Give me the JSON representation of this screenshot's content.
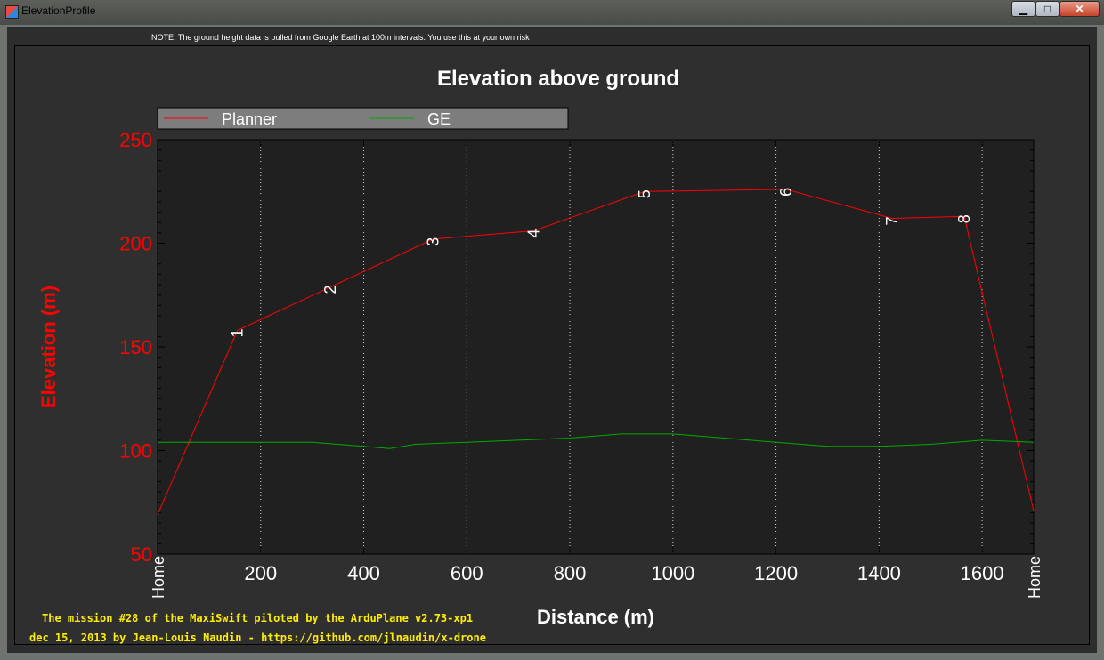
{
  "window": {
    "title": "ElevationProfile",
    "controls": [
      "minimize",
      "maximize",
      "close"
    ]
  },
  "note": "NOTE: The ground height data is pulled from Google Earth at 100m intervals. You use this at your own risk",
  "credits": {
    "line1": "The mission #28 of the MaxiSwift piloted by the ArduPlane v2.73-xp1",
    "line2": "dec 15, 2013 by Jean-Louis Naudin - https://github.com/jlnaudin/x-drone"
  },
  "colors": {
    "planner": "#ff0000",
    "ge": "#00aa00",
    "axis_text": "#ff0000",
    "plot_bg": "#202020"
  },
  "chart_data": {
    "type": "line",
    "title": "Elevation above ground",
    "xlabel": "Distance (m)",
    "ylabel": "Elevation (m)",
    "xlim": [
      0,
      1700
    ],
    "ylim": [
      50,
      250
    ],
    "xticks": [
      200,
      400,
      600,
      800,
      1000,
      1200,
      1400,
      1600
    ],
    "yticks": [
      50,
      100,
      150,
      200,
      250
    ],
    "grid": "vertical dotted",
    "legend": "top-left",
    "series": [
      {
        "name": "Planner",
        "x": [
          0,
          155,
          535,
          730,
          945,
          1220,
          1425,
          1565,
          1700
        ],
        "y": [
          69,
          158,
          202,
          206,
          225,
          226,
          212,
          213,
          71
        ]
      },
      {
        "name": "GE",
        "x": [
          0,
          100,
          200,
          300,
          400,
          450,
          500,
          600,
          700,
          800,
          900,
          1000,
          1100,
          1200,
          1300,
          1400,
          1500,
          1600,
          1700
        ],
        "y": [
          104,
          104,
          104,
          104,
          102,
          101,
          103,
          104,
          105,
          106,
          108,
          108,
          106,
          104,
          102,
          102,
          103,
          105,
          104
        ]
      }
    ],
    "point_labels": [
      {
        "x": 0,
        "y": 69,
        "text": "Home",
        "axis_label": true
      },
      {
        "x": 155,
        "y": 158,
        "text": "1"
      },
      {
        "x": 335,
        "y": 179,
        "text": "2"
      },
      {
        "x": 535,
        "y": 202,
        "text": "3"
      },
      {
        "x": 730,
        "y": 206,
        "text": "4"
      },
      {
        "x": 945,
        "y": 225,
        "text": "5"
      },
      {
        "x": 1220,
        "y": 226,
        "text": "6"
      },
      {
        "x": 1425,
        "y": 212,
        "text": "7"
      },
      {
        "x": 1565,
        "y": 213,
        "text": "8"
      },
      {
        "x": 1700,
        "y": 71,
        "text": "Home",
        "axis_label": true
      }
    ]
  }
}
